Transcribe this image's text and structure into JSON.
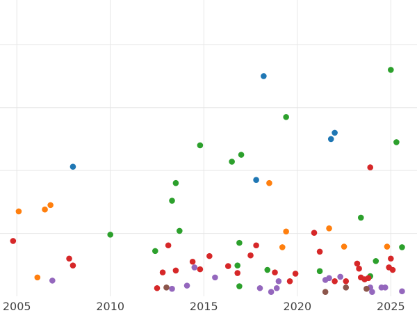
{
  "chart_data": {
    "type": "scatter",
    "title": "",
    "xlabel": "",
    "ylabel": "",
    "xlim": [
      2004.1,
      2026.4
    ],
    "ylim": [
      0,
      4.6
    ],
    "grid": true,
    "legend": "none",
    "x_ticks": [
      2005,
      2010,
      2015,
      2020,
      2025
    ],
    "x_tick_labels": [
      "2005",
      "2010",
      "2015",
      "2020",
      "2025"
    ],
    "y_ticks": [
      1,
      2,
      3,
      4
    ],
    "series": [
      {
        "color": "#1f77b4",
        "points": [
          [
            2008.0,
            2.06
          ],
          [
            2017.8,
            1.85
          ],
          [
            2018.2,
            3.5
          ],
          [
            2021.8,
            2.5
          ],
          [
            2022.0,
            2.6
          ]
        ]
      },
      {
        "color": "#ff7f0e",
        "points": [
          [
            2005.1,
            1.35
          ],
          [
            2006.1,
            0.3
          ],
          [
            2006.5,
            1.38
          ],
          [
            2006.8,
            1.45
          ],
          [
            2018.5,
            1.8
          ],
          [
            2019.2,
            0.78
          ],
          [
            2019.4,
            1.03
          ],
          [
            2021.7,
            1.08
          ],
          [
            2022.5,
            0.79
          ],
          [
            2024.8,
            0.79
          ]
        ]
      },
      {
        "color": "#2ca02c",
        "points": [
          [
            2010.0,
            0.98
          ],
          [
            2012.4,
            0.72
          ],
          [
            2013.3,
            1.52
          ],
          [
            2013.5,
            1.8
          ],
          [
            2013.7,
            1.04
          ],
          [
            2014.8,
            2.4
          ],
          [
            2016.5,
            2.14
          ],
          [
            2016.8,
            0.49
          ],
          [
            2016.9,
            0.16
          ],
          [
            2016.9,
            0.85
          ],
          [
            2017.0,
            2.25
          ],
          [
            2018.4,
            0.42
          ],
          [
            2019.4,
            2.85
          ],
          [
            2021.2,
            0.4
          ],
          [
            2023.4,
            1.25
          ],
          [
            2023.9,
            0.32
          ],
          [
            2024.2,
            0.56
          ],
          [
            2025.0,
            3.6
          ],
          [
            2025.3,
            2.45
          ],
          [
            2025.6,
            0.78
          ]
        ]
      },
      {
        "color": "#d62728",
        "points": [
          [
            2004.8,
            0.88
          ],
          [
            2007.8,
            0.6
          ],
          [
            2008.0,
            0.49
          ],
          [
            2012.5,
            0.13
          ],
          [
            2012.8,
            0.38
          ],
          [
            2013.1,
            0.81
          ],
          [
            2013.5,
            0.41
          ],
          [
            2014.4,
            0.55
          ],
          [
            2014.8,
            0.43
          ],
          [
            2015.3,
            0.64
          ],
          [
            2016.3,
            0.48
          ],
          [
            2016.8,
            0.37
          ],
          [
            2017.5,
            0.65
          ],
          [
            2017.8,
            0.81
          ],
          [
            2018.8,
            0.38
          ],
          [
            2019.6,
            0.24
          ],
          [
            2019.9,
            0.36
          ],
          [
            2020.9,
            1.01
          ],
          [
            2021.2,
            0.71
          ],
          [
            2022.0,
            0.24
          ],
          [
            2022.6,
            0.24
          ],
          [
            2023.2,
            0.52
          ],
          [
            2023.3,
            0.44
          ],
          [
            2023.4,
            0.3
          ],
          [
            2023.6,
            0.27
          ],
          [
            2023.8,
            0.29
          ],
          [
            2023.9,
            2.05
          ],
          [
            2024.9,
            0.46
          ],
          [
            2025.0,
            0.6
          ],
          [
            2025.1,
            0.42
          ]
        ]
      },
      {
        "color": "#9467bd",
        "points": [
          [
            2006.9,
            0.25
          ],
          [
            2013.3,
            0.12
          ],
          [
            2014.1,
            0.17
          ],
          [
            2014.5,
            0.46
          ],
          [
            2015.6,
            0.3
          ],
          [
            2018.0,
            0.13
          ],
          [
            2018.6,
            0.07
          ],
          [
            2018.9,
            0.13
          ],
          [
            2019.0,
            0.24
          ],
          [
            2021.5,
            0.26
          ],
          [
            2021.7,
            0.29
          ],
          [
            2022.3,
            0.31
          ],
          [
            2023.9,
            0.14
          ],
          [
            2024.0,
            0.07
          ],
          [
            2024.5,
            0.14
          ],
          [
            2024.7,
            0.14
          ],
          [
            2025.6,
            0.08
          ]
        ]
      },
      {
        "color": "#8c564b",
        "points": [
          [
            2013.0,
            0.14
          ],
          [
            2021.5,
            0.07
          ],
          [
            2022.6,
            0.14
          ],
          [
            2023.7,
            0.12
          ]
        ]
      }
    ]
  }
}
